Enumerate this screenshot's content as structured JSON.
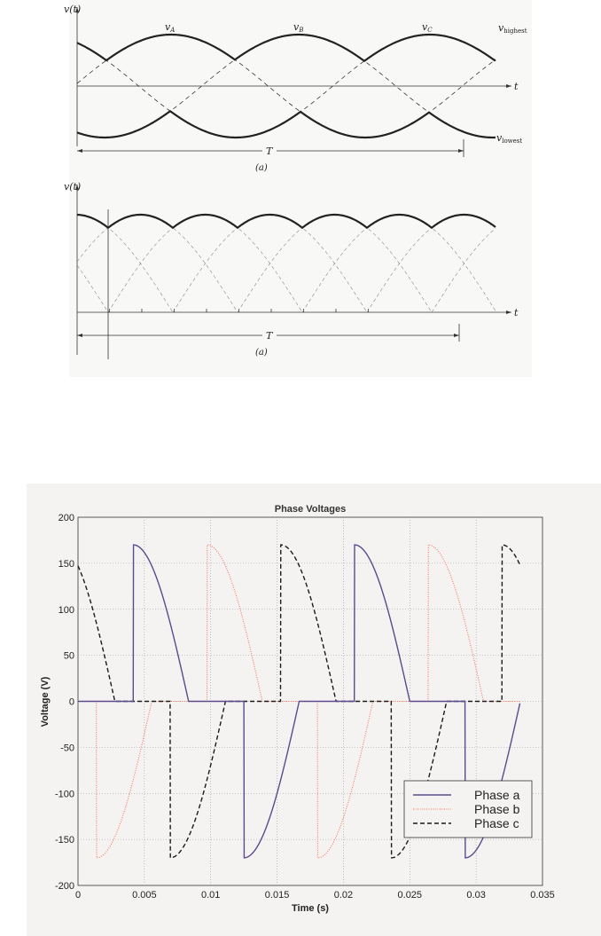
{
  "diagram_a": {
    "y_label": "v(t)",
    "t_label": "t",
    "period_label": "T",
    "caption": "(a)",
    "curves": [
      {
        "base": "v",
        "sub": "A"
      },
      {
        "base": "v",
        "sub": "B"
      },
      {
        "base": "v",
        "sub": "C"
      }
    ],
    "highest": {
      "base": "v",
      "sub": "highest"
    },
    "lowest": {
      "base": "v",
      "sub": "lowest"
    }
  },
  "diagram_b": {
    "y_label": "v(t)",
    "t_label": "t",
    "period_label": "T",
    "caption": "(a)"
  },
  "chart_data": {
    "type": "line",
    "title": "Phase Voltages",
    "xlabel": "Time (s)",
    "ylabel": "Voltage (V)",
    "xlim": [
      0,
      0.035
    ],
    "ylim": [
      -200,
      200
    ],
    "xticks": [
      "0",
      "0.005",
      "0.01",
      "0.015",
      "0.02",
      "0.025",
      "0.03",
      "0.035"
    ],
    "yticks": [
      "200",
      "150",
      "100",
      "50",
      "0",
      "-50",
      "-100",
      "-150",
      "-200"
    ],
    "grid": true,
    "legend_position": "bottom-right",
    "t_end": 0.0333,
    "amplitude": 170,
    "frequency_hz": 60,
    "series": [
      {
        "name": "Phase a",
        "phase_deg": 0,
        "color": "#5b4a8c",
        "style": "solid"
      },
      {
        "name": "Phase b",
        "phase_deg": -120,
        "color": "#ff6a4a",
        "style": "dotted"
      },
      {
        "name": "Phase c",
        "phase_deg": 120,
        "color": "#1a1a1a",
        "style": "dashed"
      }
    ],
    "waveform_rule": "v = amplitude*sin(2*pi*f*t + phase) while |v| is decreasing, else 0"
  }
}
